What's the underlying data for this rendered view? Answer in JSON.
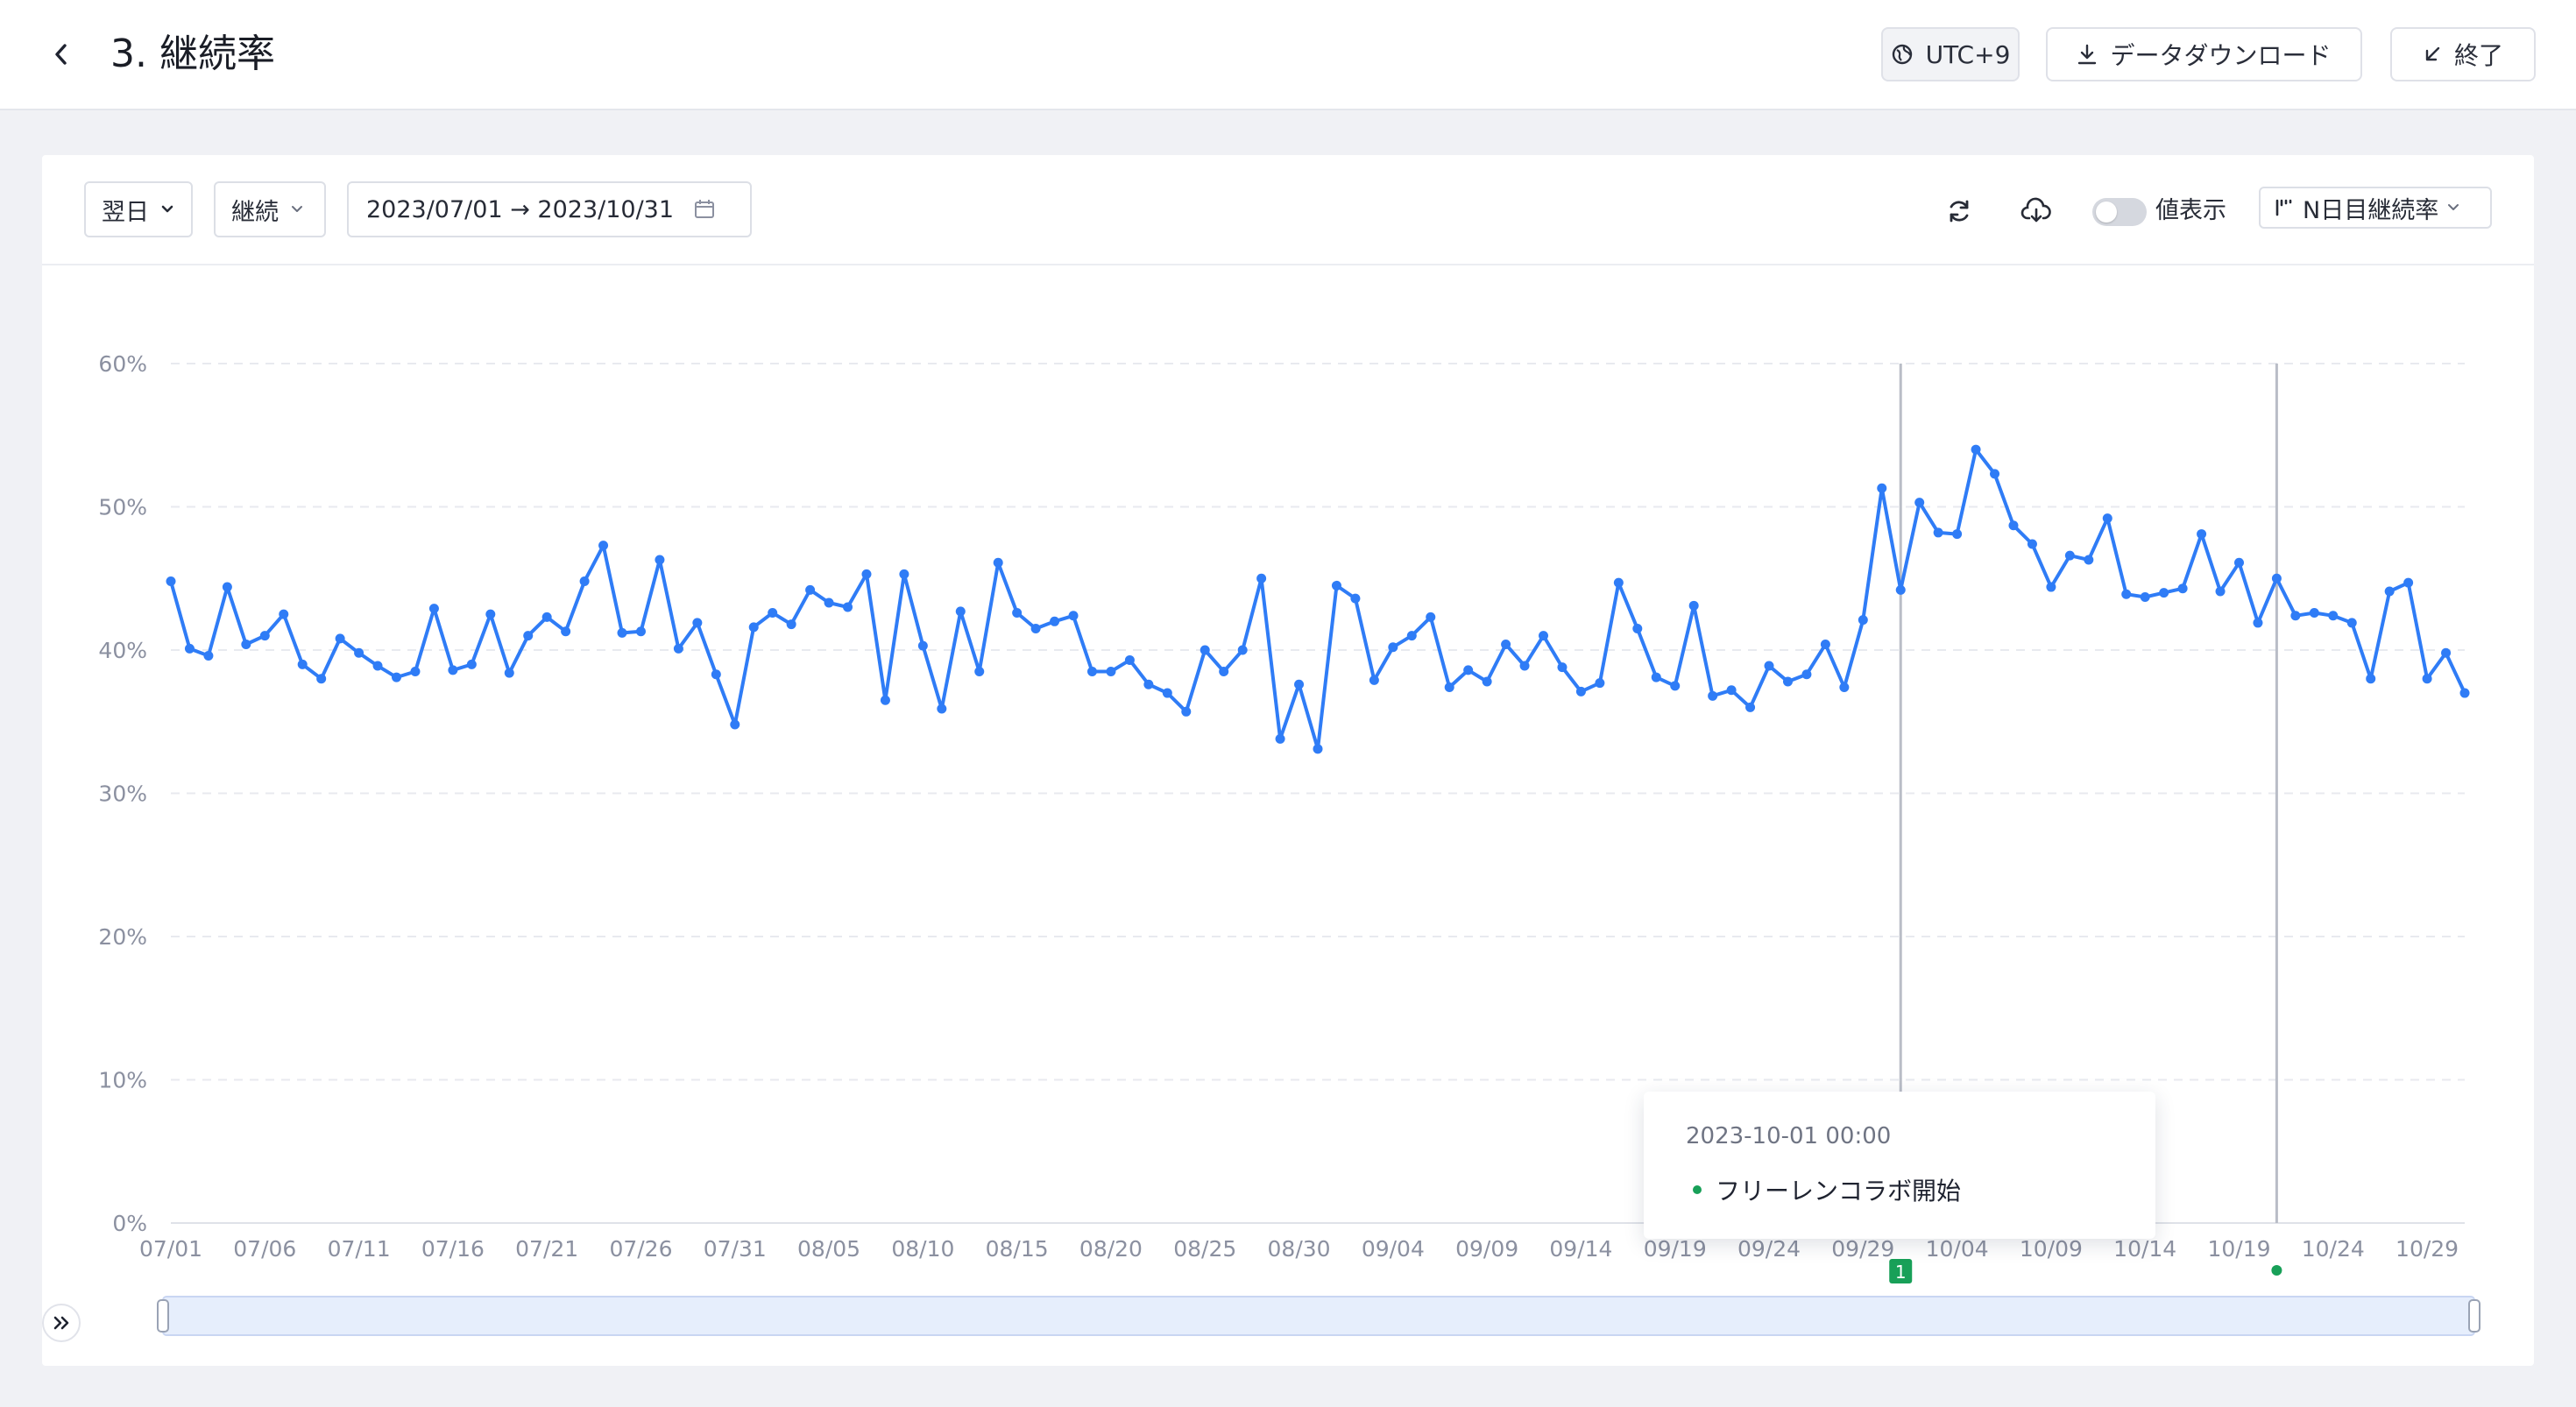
{
  "header": {
    "title": "3. 継続率",
    "timezone_label": "UTC+9",
    "download_label": "データダウンロード",
    "exit_label": "終了"
  },
  "toolbar": {
    "period_select": "翌日",
    "metric_select": "継続",
    "date_range": "2023/07/01 → 2023/10/31",
    "value_toggle_label": "値表示",
    "value_toggle_on": false,
    "nday_select": "N日目継続率"
  },
  "icons": {
    "back": "chevron-left-icon",
    "timezone": "globe-icon",
    "download": "download-icon",
    "exit": "minimize-arrow-icon",
    "calendar": "calendar-icon",
    "refresh": "refresh-icon",
    "cloud_download": "cloud-download-icon",
    "chart_type": "bar-chart-icon",
    "expand": "double-chevron-right-icon"
  },
  "colors": {
    "line": "#2f7cf6",
    "event_marker": "#18a058",
    "slider_fill": "#e6eefc"
  },
  "tooltip": {
    "date": "2023-10-01 00:00",
    "event": "フリーレンコラボ開始"
  },
  "event_markers": [
    {
      "date": "2023-10-01",
      "label": "1"
    },
    {
      "date": "2023-10-21",
      "label": ""
    }
  ],
  "chart_data": {
    "type": "line",
    "title": "",
    "xlabel": "",
    "ylabel": "",
    "ylim": [
      0,
      60
    ],
    "y_unit": "%",
    "y_ticks": [
      "0%",
      "10%",
      "20%",
      "30%",
      "40%",
      "50%",
      "60%"
    ],
    "x_tick_labels": [
      "07/01",
      "07/06",
      "07/11",
      "07/16",
      "07/21",
      "07/26",
      "07/31",
      "08/05",
      "08/10",
      "08/15",
      "08/20",
      "08/25",
      "08/30",
      "09/04",
      "09/09",
      "09/14",
      "09/19",
      "09/24",
      "09/29",
      "10/04",
      "10/09",
      "10/14",
      "10/19",
      "10/24",
      "10/29"
    ],
    "x_start": "2023-07-01",
    "x_end": "2023-10-31",
    "grid": true,
    "series": [
      {
        "name": "",
        "values": [
          44.8,
          40.1,
          39.6,
          44.4,
          40.4,
          41.0,
          42.5,
          39.0,
          38.0,
          40.8,
          39.8,
          38.9,
          38.1,
          38.5,
          42.9,
          38.6,
          39.0,
          42.5,
          38.4,
          41.0,
          42.3,
          41.3,
          44.8,
          47.3,
          41.2,
          41.3,
          46.3,
          40.1,
          41.9,
          38.3,
          34.8,
          41.6,
          42.6,
          41.8,
          44.2,
          43.3,
          43.0,
          45.3,
          36.5,
          45.3,
          40.3,
          35.9,
          42.7,
          38.5,
          46.1,
          42.6,
          41.5,
          42.0,
          42.4,
          38.5,
          38.5,
          39.3,
          37.6,
          37.0,
          35.7,
          40.0,
          38.5,
          40.0,
          45.0,
          33.8,
          37.6,
          33.1,
          44.5,
          43.6,
          37.9,
          40.2,
          41.0,
          42.3,
          37.4,
          38.6,
          37.8,
          40.4,
          38.9,
          41.0,
          38.8,
          37.1,
          37.7,
          44.7,
          41.5,
          38.1,
          37.5,
          43.1,
          36.8,
          37.2,
          36.0,
          38.9,
          37.8,
          38.3,
          40.4,
          37.4,
          42.1,
          51.3,
          44.2,
          50.3,
          48.2,
          48.1,
          54.0,
          52.3,
          48.7,
          47.4,
          44.4,
          46.6,
          46.3,
          49.2,
          43.9,
          43.7,
          44.0,
          44.3,
          48.1,
          44.1,
          46.1,
          41.9,
          45.0,
          42.4,
          42.6,
          42.4,
          41.9,
          38.0,
          44.1,
          44.7,
          38.0,
          39.8,
          37.0
        ]
      }
    ]
  }
}
